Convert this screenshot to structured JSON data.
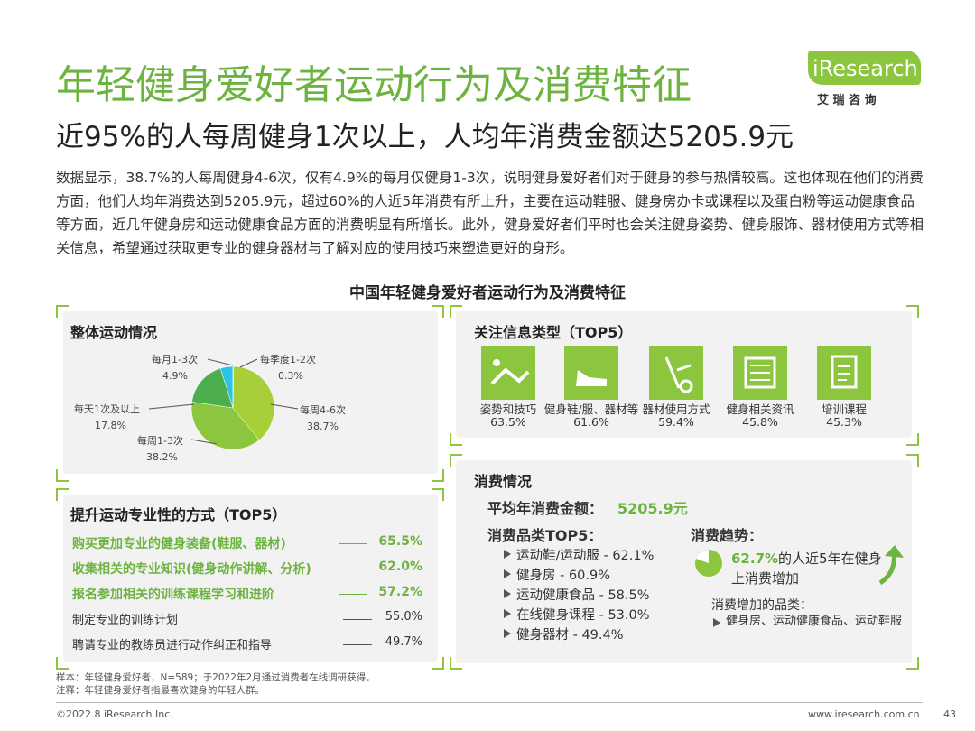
{
  "header": {
    "title": "年轻健身爱好者运动行为及消费特征",
    "subtitle": "近95%的人每周健身1次以上，人均年消费金额达5205.9元",
    "logo": "iResearch",
    "logo_cn": "艾 瑞 咨 询"
  },
  "intro": "数据显示，38.7%的人每周健身4-6次，仅有4.9%的每月仅健身1-3次，说明健身爱好者们对于健身的参与热情较高。这也体现在他们的消费方面，他们人均年消费达到5205.9元，超过60%的人近5年消费有所上升，主要在运动鞋服、健身房办卡或课程以及蛋白粉等运动健康食品等方面，近几年健身房和运动健康食品方面的消费明显有所增长。此外，健身爱好者们平时也会关注健身姿势、健身服饰、器材使用方式等相关信息，希望通过获取更专业的健身器材与了解对应的使用技巧来塑造更好的身形。",
  "panel_title": "中国年轻健身爱好者运动行为及消费特征",
  "frequency": {
    "title": "整体运动情况",
    "type": "pie",
    "categories": [
      "每季度1-2次",
      "每周4-6次",
      "每周1-3次",
      "每天1次及以上",
      "每月1-3次"
    ],
    "values": [
      0.3,
      38.7,
      38.2,
      17.8,
      4.9
    ],
    "value_labels": [
      "0.3%",
      "38.7%",
      "38.2%",
      "17.8%",
      "4.9%"
    ],
    "colors": [
      "#9e9e9e",
      "#a6cf3a",
      "#8cc63f",
      "#4cae4c",
      "#2bc4e4"
    ]
  },
  "info": {
    "title": "关注信息类型（TOP5）",
    "items": [
      {
        "label": "姿势和技巧",
        "value": "63.5%"
      },
      {
        "label": "健身鞋/服、器材等",
        "value": "61.6%"
      },
      {
        "label": "器材使用方式",
        "value": "59.4%"
      },
      {
        "label": "健身相关资讯",
        "value": "45.8%"
      },
      {
        "label": "培训课程",
        "value": "45.3%"
      }
    ]
  },
  "methods": {
    "title": "提升运动专业性的方式（TOP5）",
    "items": [
      {
        "label": "购买更加专业的健身装备(鞋服、器材)",
        "value": "65.5%"
      },
      {
        "label": "收集相关的专业知识(健身动作讲解、分析)",
        "value": "62.0%"
      },
      {
        "label": "报名参加相关的训练课程学习和进阶",
        "value": "57.2%"
      },
      {
        "label": "制定专业的训练计划",
        "value": "55.0%"
      },
      {
        "label": "聘请专业的教练员进行动作纠正和指导",
        "value": "49.7%"
      }
    ]
  },
  "spending": {
    "title": "消费情况",
    "avg_label": "平均年消费金额：",
    "avg_value": "5205.9元",
    "categories_title": "消费品类TOP5：",
    "categories": [
      "运动鞋/运动服 - 62.1%",
      "健身房 - 60.9%",
      "运动健康食品 - 58.5%",
      "在线健身课程 - 53.0%",
      "健身器材 - 49.4%"
    ],
    "trend_title": "消费趋势：",
    "trend_value": "62.7%",
    "trend_text": "的人近5年在健身上消费增加",
    "increase_title": "消费增加的品类：",
    "increase_items": "健身房、运动健康食品、运动鞋服"
  },
  "footer": {
    "notes": [
      "样本：年轻健身爱好者，N=589；于2022年2月通过消费者在线调研获得。",
      "注释：年轻健身爱好者指最喜欢健身的年轻人群。"
    ],
    "copyright": "©2022.8 iResearch Inc.",
    "url": "www.iresearch.com.cn",
    "page": "43"
  }
}
